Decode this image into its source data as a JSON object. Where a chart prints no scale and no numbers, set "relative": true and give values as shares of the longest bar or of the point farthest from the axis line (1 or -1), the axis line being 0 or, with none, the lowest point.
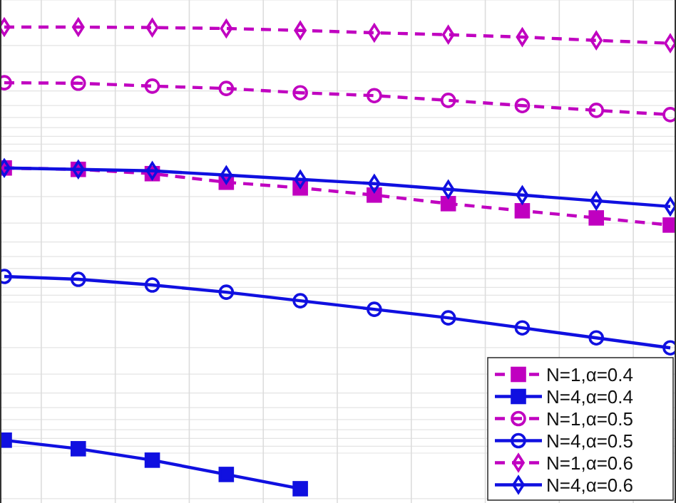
{
  "chart_data": {
    "type": "line",
    "relative": true,
    "grid": true,
    "legend": "bottom right",
    "categories": [
      null,
      null,
      null,
      null,
      null,
      null,
      null,
      null,
      null,
      null
    ],
    "series": [
      {
        "name": "N=1,α=0.4",
        "color": "#c000c0",
        "line_style": "dashed",
        "marker": "square",
        "values": [
          0.704,
          0.701,
          0.692,
          0.674,
          0.662,
          0.647,
          0.629,
          0.614,
          0.599,
          0.584
        ]
      },
      {
        "name": "N=4,α=0.4",
        "color": "#1010e0",
        "line_style": "solid",
        "marker": "square",
        "values": [
          0.132,
          0.114,
          0.09,
          0.06,
          0.03,
          null,
          null,
          null,
          null,
          null
        ]
      },
      {
        "name": "N=1,α=0.5",
        "color": "#c000c0",
        "line_style": "dashed",
        "marker": "circle",
        "values": [
          0.883,
          0.882,
          0.876,
          0.871,
          0.862,
          0.856,
          0.846,
          0.835,
          0.825,
          0.816
        ]
      },
      {
        "name": "N=4,α=0.5",
        "color": "#1010e0",
        "line_style": "solid",
        "marker": "circle",
        "values": [
          0.476,
          0.47,
          0.458,
          0.443,
          0.425,
          0.407,
          0.389,
          0.368,
          0.347,
          0.326
        ]
      },
      {
        "name": "N=1,α=0.6",
        "color": "#c000c0",
        "line_style": "dashed",
        "marker": "diamond",
        "values": [
          1.0,
          1.0,
          0.999,
          0.997,
          0.993,
          0.988,
          0.984,
          0.979,
          0.972,
          0.966
        ]
      },
      {
        "name": "N=4,α=0.6",
        "color": "#1010e0",
        "line_style": "solid",
        "marker": "diamond",
        "values": [
          0.704,
          0.701,
          0.698,
          0.689,
          0.68,
          0.671,
          0.659,
          0.647,
          0.635,
          0.623
        ]
      }
    ]
  }
}
